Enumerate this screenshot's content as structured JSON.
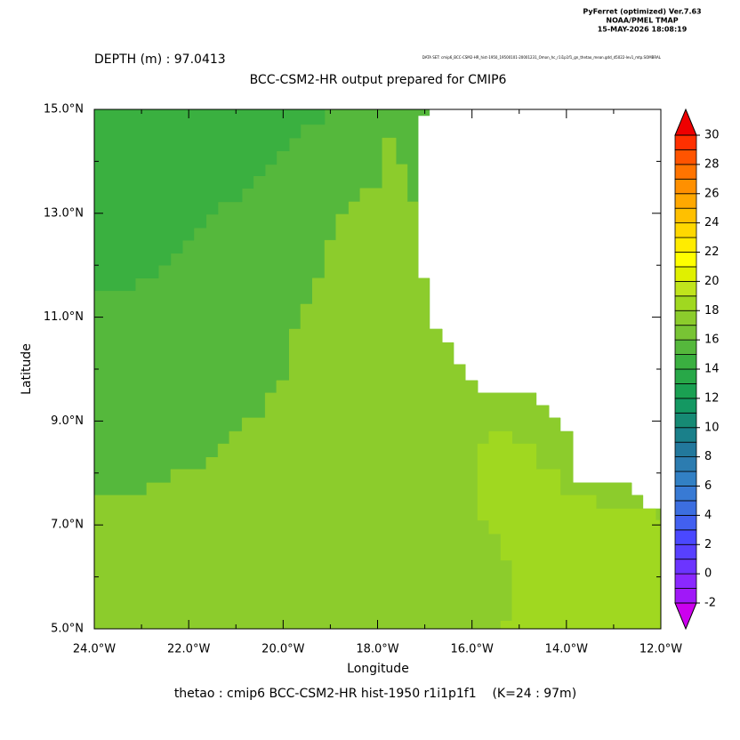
{
  "chart_data": {
    "type": "map",
    "header": [
      "PyFerret (optimized) Ver.7.63",
      "NOAA/PMEL TMAP",
      "15-MAY-2026 18:08:19"
    ],
    "depth_label": "DEPTH (m) : 97.0413",
    "dataset_note": "DATA SET: cmip6_BCC-CSM2-HR_hist-1950_19500101-20001231_Omon_hc_r1i1p1f1_gn_thetao_mean.gdd_d5022-lev1_mtp.SOMBRAL",
    "title": "BCC-CSM2-HR output prepared for CMIP6",
    "xlabel": "Longitude",
    "ylabel": "Latitude",
    "footer": "thetao : cmip6 BCC-CSM2-HR hist-1950 r1i1p1f1    (K=24 : 97m)",
    "xlim": [
      -24,
      -12
    ],
    "ylim": [
      5,
      15
    ],
    "xticks": [
      {
        "value": -24,
        "label": "24.0°W"
      },
      {
        "value": -22,
        "label": "22.0°W"
      },
      {
        "value": -20,
        "label": "20.0°W"
      },
      {
        "value": -18,
        "label": "18.0°W"
      },
      {
        "value": -16,
        "label": "16.0°W"
      },
      {
        "value": -14,
        "label": "14.0°W"
      },
      {
        "value": -12,
        "label": "12.0°W"
      }
    ],
    "yticks": [
      {
        "value": 5,
        "label": "5.0°N"
      },
      {
        "value": 7,
        "label": "7.0°N"
      },
      {
        "value": 9,
        "label": "9.0°N"
      },
      {
        "value": 11,
        "label": "11.0°N"
      },
      {
        "value": 13,
        "label": "13.0°N"
      },
      {
        "value": 15,
        "label": "15.0°N"
      }
    ],
    "xminorticks": [
      -23,
      -21,
      -19,
      -17,
      -15,
      -13
    ],
    "yminorticks": [
      6,
      8,
      10,
      12,
      14
    ],
    "land_color": "#ffffff",
    "colorbar": {
      "levels": [
        -2,
        -1,
        0,
        1,
        2,
        3,
        4,
        5,
        6,
        7,
        8,
        9,
        10,
        11,
        12,
        13,
        14,
        15,
        16,
        17,
        18,
        19,
        20,
        21,
        22,
        23,
        24,
        25,
        26,
        27,
        28,
        29,
        30
      ],
      "colors": [
        "#a018f8",
        "#8a28ff",
        "#6c34ff",
        "#5840ff",
        "#4a48ff",
        "#4260f0",
        "#3c6ee0",
        "#387ad4",
        "#3280c4",
        "#2c7cb0",
        "#22789c",
        "#1a808a",
        "#168a74",
        "#149862",
        "#1aa052",
        "#28a848",
        "#3ab040",
        "#55b83c",
        "#78c434",
        "#8ccc2c",
        "#a0d820",
        "#c0e41c",
        "#e0f000",
        "#ffff00",
        "#ffec00",
        "#ffd800",
        "#ffc000",
        "#ffa800",
        "#ff9000",
        "#ff7400",
        "#ff5400",
        "#ff3000"
      ],
      "under_color": "#cc00ee",
      "over_color": "#ee0000",
      "ticks": [
        -2,
        0,
        2,
        4,
        6,
        8,
        10,
        12,
        14,
        16,
        18,
        20,
        22,
        24,
        26,
        28,
        30
      ]
    },
    "regions": [
      {
        "value": 15.5,
        "lonlat": [
          [
            -24,
            15
          ],
          [
            -16.9,
            15
          ],
          [
            -16.9,
            14.88
          ],
          [
            -17.14,
            14.88
          ],
          [
            -17.14,
            11.75
          ],
          [
            -16.9,
            11.75
          ],
          [
            -16.9,
            10.77
          ],
          [
            -16.63,
            10.77
          ],
          [
            -16.63,
            10.51
          ],
          [
            -16.39,
            10.51
          ],
          [
            -16.39,
            10.09
          ],
          [
            -16.14,
            10.09
          ],
          [
            -16.14,
            9.78
          ],
          [
            -15.88,
            9.78
          ],
          [
            -15.88,
            9.54
          ],
          [
            -14.64,
            9.54
          ],
          [
            -14.64,
            9.3
          ],
          [
            -14.37,
            9.3
          ],
          [
            -14.37,
            9.06
          ],
          [
            -14.13,
            9.06
          ],
          [
            -14.13,
            8.8
          ],
          [
            -13.86,
            8.8
          ],
          [
            -13.86,
            7.81
          ],
          [
            -12.62,
            7.81
          ],
          [
            -12.62,
            7.57
          ],
          [
            -12.38,
            7.57
          ],
          [
            -12.38,
            7.31
          ],
          [
            -12,
            7.31
          ],
          [
            -12,
            5
          ],
          [
            -24,
            5
          ]
        ]
      },
      {
        "value": 14.5,
        "lonlat": [
          [
            -24,
            15
          ],
          [
            -19.12,
            15
          ],
          [
            -19.12,
            14.71
          ],
          [
            -19.63,
            14.71
          ],
          [
            -19.63,
            14.45
          ],
          [
            -19.87,
            14.45
          ],
          [
            -19.87,
            14.2
          ],
          [
            -20.14,
            14.2
          ],
          [
            -20.14,
            13.94
          ],
          [
            -20.38,
            13.94
          ],
          [
            -20.38,
            13.72
          ],
          [
            -20.63,
            13.72
          ],
          [
            -20.63,
            13.48
          ],
          [
            -20.87,
            13.48
          ],
          [
            -20.87,
            13.22
          ],
          [
            -21.38,
            13.22
          ],
          [
            -21.38,
            12.98
          ],
          [
            -21.63,
            12.98
          ],
          [
            -21.63,
            12.72
          ],
          [
            -21.89,
            12.72
          ],
          [
            -21.89,
            12.48
          ],
          [
            -22.13,
            12.48
          ],
          [
            -22.13,
            12.23
          ],
          [
            -22.38,
            12.23
          ],
          [
            -22.38,
            12
          ],
          [
            -22.64,
            12
          ],
          [
            -22.64,
            11.75
          ],
          [
            -23.13,
            11.75
          ],
          [
            -23.13,
            11.51
          ],
          [
            -24,
            11.51
          ]
        ]
      },
      {
        "value": 17.5,
        "lonlat": [
          [
            -24,
            7.57
          ],
          [
            -22.89,
            7.57
          ],
          [
            -22.89,
            7.81
          ],
          [
            -22.38,
            7.81
          ],
          [
            -22.38,
            8.07
          ],
          [
            -21.63,
            8.07
          ],
          [
            -21.63,
            8.3
          ],
          [
            -21.38,
            8.3
          ],
          [
            -21.38,
            8.56
          ],
          [
            -21.14,
            8.56
          ],
          [
            -21.14,
            8.8
          ],
          [
            -20.87,
            8.8
          ],
          [
            -20.87,
            9.06
          ],
          [
            -20.38,
            9.06
          ],
          [
            -20.38,
            9.54
          ],
          [
            -20.14,
            9.54
          ],
          [
            -20.14,
            9.78
          ],
          [
            -19.87,
            9.78
          ],
          [
            -19.87,
            10.77
          ],
          [
            -19.63,
            10.77
          ],
          [
            -19.63,
            11.25
          ],
          [
            -19.38,
            11.25
          ],
          [
            -19.38,
            11.75
          ],
          [
            -19.12,
            11.75
          ],
          [
            -19.12,
            12.48
          ],
          [
            -18.88,
            12.48
          ],
          [
            -18.88,
            12.98
          ],
          [
            -18.61,
            12.98
          ],
          [
            -18.61,
            13.22
          ],
          [
            -18.37,
            13.22
          ],
          [
            -18.37,
            13.48
          ],
          [
            -17.9,
            13.48
          ],
          [
            -17.9,
            14.45
          ],
          [
            -17.61,
            14.45
          ],
          [
            -17.61,
            13.94
          ],
          [
            -17.37,
            13.94
          ],
          [
            -17.37,
            13.22
          ],
          [
            -17.14,
            13.22
          ],
          [
            -17.14,
            11.75
          ],
          [
            -16.9,
            11.75
          ],
          [
            -16.9,
            10.77
          ],
          [
            -16.63,
            10.77
          ],
          [
            -16.63,
            10.51
          ],
          [
            -16.39,
            10.51
          ],
          [
            -16.39,
            10.09
          ],
          [
            -16.14,
            10.09
          ],
          [
            -16.14,
            9.78
          ],
          [
            -15.88,
            9.78
          ],
          [
            -15.88,
            9.54
          ],
          [
            -14.64,
            9.54
          ],
          [
            -14.64,
            9.3
          ],
          [
            -14.37,
            9.3
          ],
          [
            -14.37,
            9.06
          ],
          [
            -14.13,
            9.06
          ],
          [
            -14.13,
            8.8
          ],
          [
            -13.86,
            8.8
          ],
          [
            -13.86,
            7.81
          ],
          [
            -12.62,
            7.81
          ],
          [
            -12.62,
            7.57
          ],
          [
            -12.38,
            7.57
          ],
          [
            -12.38,
            7.31
          ],
          [
            -12,
            7.31
          ],
          [
            -12,
            5
          ],
          [
            -24,
            5
          ]
        ]
      },
      {
        "value": 18.5,
        "lonlat": [
          [
            -15.88,
            8.56
          ],
          [
            -15.64,
            8.56
          ],
          [
            -15.64,
            8.8
          ],
          [
            -15.15,
            8.8
          ],
          [
            -15.15,
            8.56
          ],
          [
            -14.64,
            8.56
          ],
          [
            -14.64,
            8.07
          ],
          [
            -14.13,
            8.07
          ],
          [
            -14.13,
            7.57
          ],
          [
            -13.37,
            7.57
          ],
          [
            -13.37,
            7.31
          ],
          [
            -12.11,
            7.31
          ],
          [
            -12.11,
            7.09
          ],
          [
            -12,
            7.09
          ],
          [
            -12,
            5
          ],
          [
            -15.39,
            5
          ],
          [
            -15.39,
            5.15
          ],
          [
            -15.15,
            5.15
          ],
          [
            -15.15,
            6.32
          ],
          [
            -15.39,
            6.32
          ],
          [
            -15.39,
            6.83
          ],
          [
            -15.64,
            6.83
          ],
          [
            -15.64,
            7.09
          ],
          [
            -15.88,
            7.09
          ]
        ]
      }
    ]
  }
}
